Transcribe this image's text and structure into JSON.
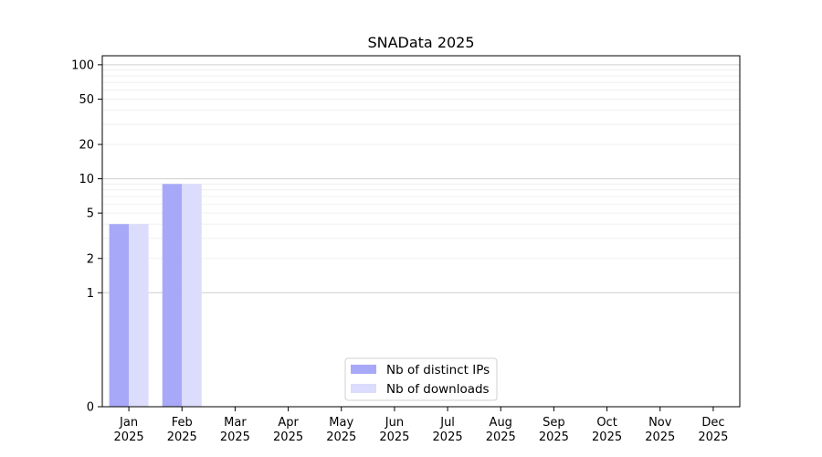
{
  "chart_data": {
    "type": "bar",
    "title": "SNAData 2025",
    "xlabel": "",
    "ylabel": "",
    "categories": [
      [
        "Jan",
        "2025"
      ],
      [
        "Feb",
        "2025"
      ],
      [
        "Mar",
        "2025"
      ],
      [
        "Apr",
        "2025"
      ],
      [
        "May",
        "2025"
      ],
      [
        "Jun",
        "2025"
      ],
      [
        "Jul",
        "2025"
      ],
      [
        "Aug",
        "2025"
      ],
      [
        "Sep",
        "2025"
      ],
      [
        "Oct",
        "2025"
      ],
      [
        "Nov",
        "2025"
      ],
      [
        "Dec",
        "2025"
      ]
    ],
    "series": [
      {
        "name": "Nb of distinct IPs",
        "color": "#a8a8f8",
        "values": [
          4,
          9,
          0,
          0,
          0,
          0,
          0,
          0,
          0,
          0,
          0,
          0
        ]
      },
      {
        "name": "Nb of downloads",
        "color": "#dcdcfc",
        "values": [
          4,
          9,
          0,
          0,
          0,
          0,
          0,
          0,
          0,
          0,
          0,
          0
        ]
      }
    ],
    "y_scale": "symlog",
    "yticks": [
      0,
      1,
      2,
      5,
      10,
      20,
      50,
      100
    ],
    "ylim": [
      0,
      120
    ],
    "grid": true,
    "legend_position": "lower center"
  }
}
